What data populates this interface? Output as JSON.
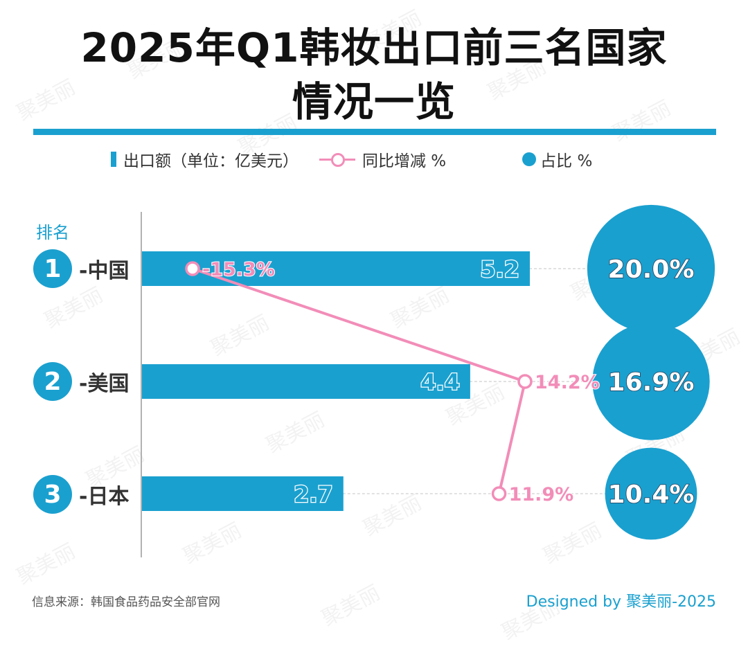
{
  "title": {
    "line1": "2025年Q1韩妆出口前三名国家",
    "line2": "情况一览"
  },
  "legend": {
    "bar_label": "出口额（单位：亿美元）",
    "line_label": "同比增减 %",
    "bubble_label": "占比 %"
  },
  "rank_header": "排名",
  "colors": {
    "bar": "#1aa0cf",
    "line": "#f28db8",
    "bubble": "#1aa0cf",
    "rank_badge": "#1aa0cf"
  },
  "chart_data": {
    "type": "bar",
    "title": "2025年Q1韩妆出口前三名国家情况一览",
    "categories": [
      "中国",
      "美国",
      "日本"
    ],
    "category_labels": [
      "-中国",
      "-美国",
      "-日本"
    ],
    "ranks": [
      "1",
      "2",
      "3"
    ],
    "series": [
      {
        "name": "出口额（单位：亿美元）",
        "type": "bar",
        "values": [
          5.2,
          4.4,
          2.7
        ],
        "labels": [
          "5.2",
          "4.4",
          "2.7"
        ]
      },
      {
        "name": "同比增减 %",
        "type": "line",
        "values": [
          -15.3,
          14.2,
          11.9
        ],
        "labels": [
          "-15.3%",
          "14.2%",
          "11.9%"
        ]
      },
      {
        "name": "占比 %",
        "type": "bubble",
        "values": [
          20.0,
          16.9,
          10.4
        ],
        "labels": [
          "20.0%",
          "16.9%",
          "10.4%"
        ]
      }
    ],
    "xlabel": "",
    "ylabel": "排名",
    "legend_position": "top",
    "grid": false
  },
  "footer": {
    "source": "信息来源：韩国食品药品安全部官网",
    "credit": "Designed by 聚美丽-2025"
  },
  "watermark_text": "聚美丽"
}
